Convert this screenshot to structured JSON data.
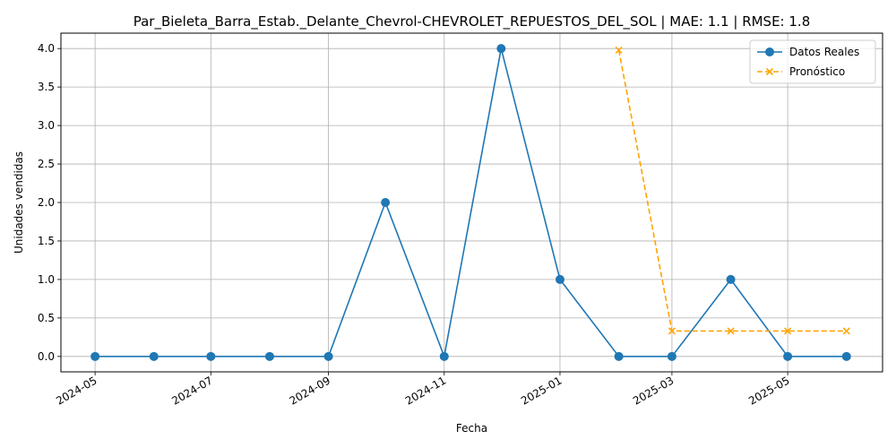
{
  "chart_data": {
    "type": "line",
    "title": "Par_Bieleta_Barra_Estab._Delante_Chevrol-CHEVROLET_REPUESTOS_DEL_SOL | MAE: 1.1 | RMSE: 1.8",
    "xlabel": "Fecha",
    "ylabel": "Unidades vendidas",
    "x_ticks": [
      "2024-05",
      "2024-07",
      "2024-09",
      "2024-11",
      "2025-01",
      "2025-03",
      "2025-05"
    ],
    "y_ticks": [
      "0.0",
      "0.5",
      "1.0",
      "1.5",
      "2.0",
      "2.5",
      "3.0",
      "3.5",
      "4.0"
    ],
    "xlim": [
      "2024-04-13",
      "2025-06-20"
    ],
    "ylim": [
      -0.2,
      4.2
    ],
    "grid": true,
    "legend_position": "top-right",
    "series": [
      {
        "name": "Datos Reales",
        "color": "#1f77b4",
        "line_style": "solid",
        "marker": "circle",
        "points": [
          {
            "x": "2024-05-01",
            "y": 0
          },
          {
            "x": "2024-06-01",
            "y": 0
          },
          {
            "x": "2024-07-01",
            "y": 0
          },
          {
            "x": "2024-08-01",
            "y": 0
          },
          {
            "x": "2024-09-01",
            "y": 0
          },
          {
            "x": "2024-10-01",
            "y": 2
          },
          {
            "x": "2024-11-01",
            "y": 0
          },
          {
            "x": "2024-12-01",
            "y": 4
          },
          {
            "x": "2025-01-01",
            "y": 1
          },
          {
            "x": "2025-02-01",
            "y": 0
          },
          {
            "x": "2025-03-01",
            "y": 0
          },
          {
            "x": "2025-04-01",
            "y": 1
          },
          {
            "x": "2025-05-01",
            "y": 0
          },
          {
            "x": "2025-06-01",
            "y": 0
          }
        ]
      },
      {
        "name": "Pronóstico",
        "color": "#ffa500",
        "line_style": "dashed",
        "marker": "x",
        "points": [
          {
            "x": "2025-02-01",
            "y": 3.98
          },
          {
            "x": "2025-03-01",
            "y": 0.33
          },
          {
            "x": "2025-04-01",
            "y": 0.33
          },
          {
            "x": "2025-05-01",
            "y": 0.33
          },
          {
            "x": "2025-06-01",
            "y": 0.33
          }
        ]
      }
    ]
  }
}
